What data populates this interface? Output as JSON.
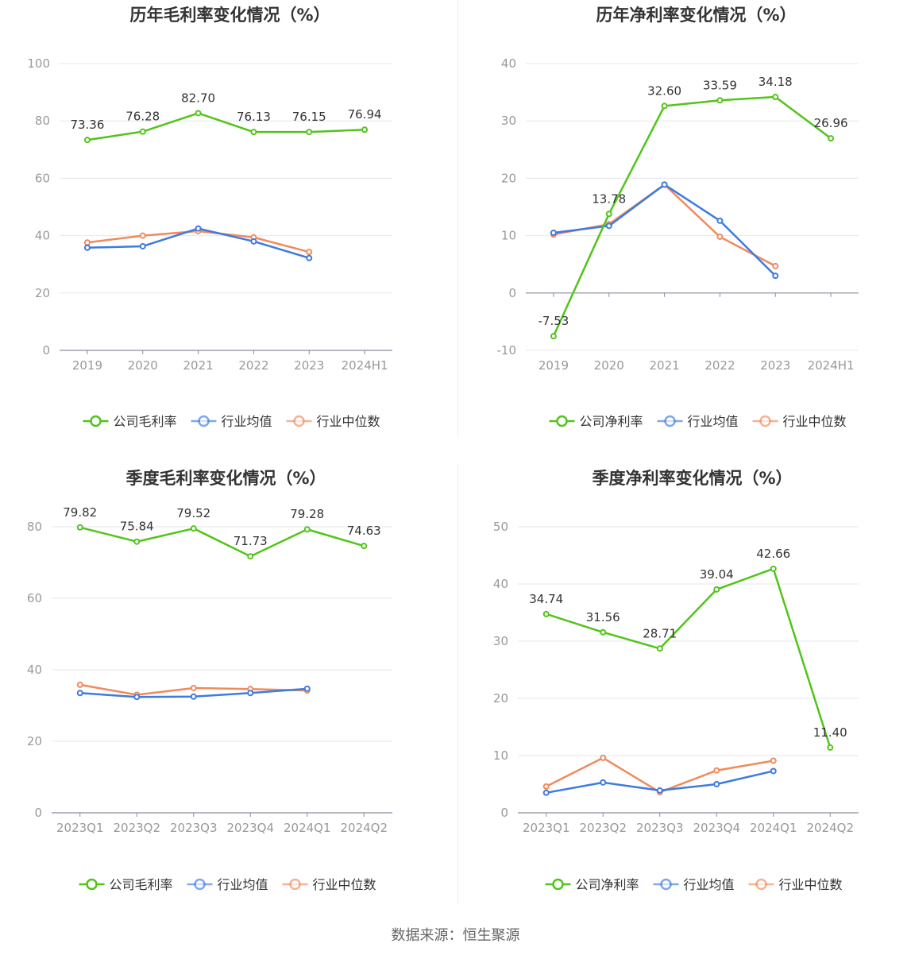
{
  "footer": {
    "source": "数据来源：恒生聚源"
  },
  "colors": {
    "company": "#52c41a",
    "avg": "#3d7be0",
    "median": "#f08a5d",
    "grid": "#e6e6ef",
    "axis": "#8a8aa0",
    "text": "#999999"
  },
  "chart_data": [
    {
      "type": "line",
      "title": "历年毛利率变化情况（%）",
      "categories": [
        "2019",
        "2020",
        "2021",
        "2022",
        "2023",
        "2024H1"
      ],
      "ylim": [
        0,
        100
      ],
      "yticks": [
        0,
        20,
        40,
        60,
        80,
        100
      ],
      "series": [
        {
          "name": "公司毛利率",
          "values": [
            73.36,
            76.28,
            82.7,
            76.13,
            76.15,
            76.94
          ],
          "labels": [
            "73.36",
            "76.28",
            "82.70",
            "76.13",
            "76.15",
            "76.94"
          ]
        },
        {
          "name": "行业均值",
          "values": [
            35.8,
            36.3,
            42.5,
            38.0,
            32.2,
            null
          ]
        },
        {
          "name": "行业中位数",
          "values": [
            37.6,
            40.0,
            41.6,
            39.4,
            34.3,
            null
          ]
        }
      ]
    },
    {
      "type": "line",
      "title": "历年净利率变化情况（%）",
      "categories": [
        "2019",
        "2020",
        "2021",
        "2022",
        "2023",
        "2024H1"
      ],
      "ylim": [
        -10,
        40
      ],
      "yticks": [
        -10,
        0,
        10,
        20,
        30,
        40
      ],
      "series": [
        {
          "name": "公司净利率",
          "values": [
            -7.53,
            13.78,
            32.6,
            33.59,
            34.18,
            26.96
          ],
          "labels": [
            "-7.53",
            "13.78",
            "32.60",
            "33.59",
            "34.18",
            "26.96"
          ]
        },
        {
          "name": "行业均值",
          "values": [
            10.5,
            11.7,
            18.9,
            12.6,
            3.0,
            null
          ]
        },
        {
          "name": "行业中位数",
          "values": [
            10.2,
            12.0,
            18.9,
            9.8,
            4.7,
            null
          ]
        }
      ]
    },
    {
      "type": "line",
      "title": "季度毛利率变化情况（%）",
      "categories": [
        "2023Q1",
        "2023Q2",
        "2023Q3",
        "2023Q4",
        "2024Q1",
        "2024Q2"
      ],
      "ylim": [
        0,
        80
      ],
      "yticks": [
        0,
        20,
        40,
        60,
        80
      ],
      "series": [
        {
          "name": "公司毛利率",
          "values": [
            79.82,
            75.84,
            79.52,
            71.73,
            79.28,
            74.63
          ],
          "labels": [
            "79.82",
            "75.84",
            "79.52",
            "71.73",
            "79.28",
            "74.63"
          ]
        },
        {
          "name": "行业均值",
          "values": [
            33.5,
            32.4,
            32.5,
            33.5,
            34.7,
            null
          ]
        },
        {
          "name": "行业中位数",
          "values": [
            35.8,
            33.0,
            34.9,
            34.6,
            34.2,
            null
          ]
        }
      ]
    },
    {
      "type": "line",
      "title": "季度净利率变化情况（%）",
      "categories": [
        "2023Q1",
        "2023Q2",
        "2023Q3",
        "2023Q4",
        "2024Q1",
        "2024Q2"
      ],
      "ylim": [
        0,
        50
      ],
      "yticks": [
        0,
        10,
        20,
        30,
        40,
        50
      ],
      "series": [
        {
          "name": "公司净利率",
          "values": [
            34.74,
            31.56,
            28.71,
            39.04,
            42.66,
            11.4
          ],
          "labels": [
            "34.74",
            "31.56",
            "28.71",
            "39.04",
            "42.66",
            "11.40"
          ]
        },
        {
          "name": "行业均值",
          "values": [
            3.5,
            5.3,
            3.9,
            5.0,
            7.3,
            null
          ]
        },
        {
          "name": "行业中位数",
          "values": [
            4.6,
            9.6,
            3.6,
            7.4,
            9.1,
            null
          ]
        }
      ]
    }
  ]
}
